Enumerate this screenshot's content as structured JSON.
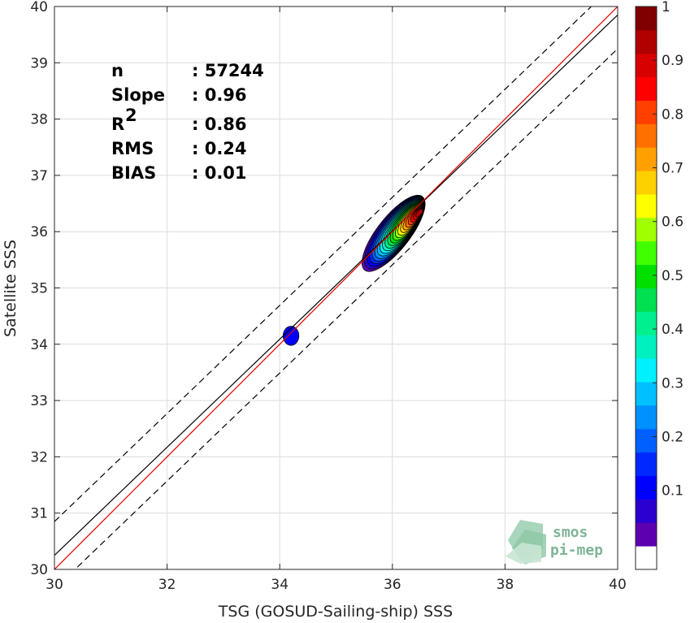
{
  "chart_data": {
    "type": "heatmap",
    "xlabel": "TSG (GOSUD-Sailing-ship) SSS",
    "ylabel": "Satellite SSS",
    "xlim": [
      30,
      40
    ],
    "ylim": [
      30,
      40
    ],
    "x_ticks": [
      "30",
      "32",
      "34",
      "36",
      "38",
      "40"
    ],
    "y_ticks": [
      "30",
      "31",
      "32",
      "33",
      "34",
      "35",
      "36",
      "37",
      "38",
      "39",
      "40"
    ],
    "grid": true,
    "stats": [
      {
        "key": "n",
        "sep": ": ",
        "value": "57244"
      },
      {
        "key": "Slope",
        "sep": ": ",
        "value": "0.96"
      },
      {
        "key": "R",
        "sup": "2",
        "sep": ": ",
        "value": "0.86"
      },
      {
        "key": "RMS",
        "sep": ": ",
        "value": "0.24"
      },
      {
        "key": "BIAS",
        "sep": ": ",
        "value": "0.01"
      }
    ],
    "lines": {
      "identity": {
        "color": "#e00000",
        "slope": 1,
        "intercept": 0
      },
      "fit": {
        "color": "#000000",
        "slope": 0.96,
        "intercept": 1.45
      },
      "bounds": {
        "color": "#000000",
        "style": "dashed",
        "offset": 0.6,
        "slope": 0.96,
        "intercept": 1.45
      }
    },
    "density_peaks": [
      {
        "x": 36.35,
        "y": 36.35,
        "max_level": 1.0
      },
      {
        "x": 34.2,
        "y": 34.15,
        "max_level": 0.1
      }
    ],
    "colorbar": {
      "ticks": [
        "0.1",
        "0.2",
        "0.3",
        "0.4",
        "0.5",
        "0.6",
        "0.7",
        "0.8",
        "0.9",
        "1"
      ],
      "colors": [
        "#ffffff",
        "#5c00b0",
        "#2a00d0",
        "#0000ff",
        "#0028ff",
        "#0060ff",
        "#0090ff",
        "#00c0ff",
        "#00f0ff",
        "#00f0c0",
        "#00f090",
        "#00e050",
        "#00e000",
        "#40ff00",
        "#a0ff00",
        "#ffff00",
        "#ffd000",
        "#ffa000",
        "#ff7000",
        "#ff4000",
        "#ff0000",
        "#d80000",
        "#b00000",
        "#800000"
      ]
    }
  },
  "logo": {
    "line1": "smos",
    "line2": "pi-mep"
  }
}
